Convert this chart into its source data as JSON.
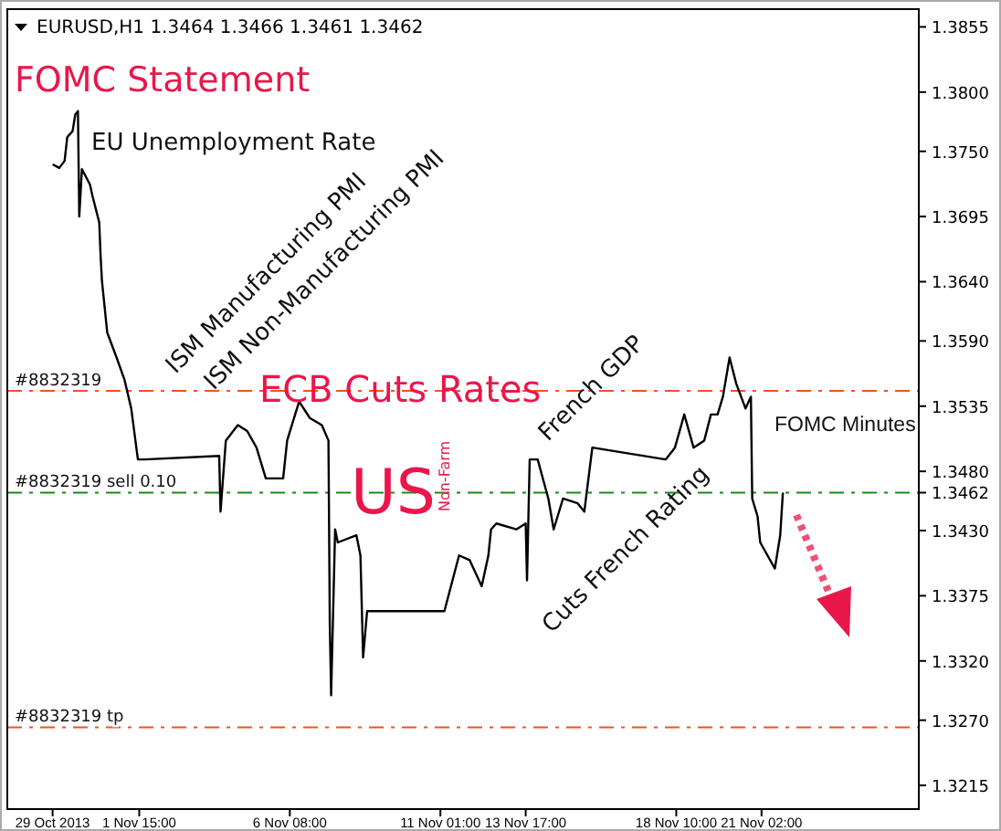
{
  "chart_data": {
    "type": "line",
    "title": "EURUSD,H1  1.3464 1.3466 1.3461 1.3462",
    "x": [
      "2013-10-29T22:00",
      "2013-10-30T03:00",
      "2013-10-30T07:00",
      "2013-10-30T09:00",
      "2013-10-30T13:00",
      "2013-10-30T15:00",
      "2013-10-30T17:00",
      "2013-10-30T18:00",
      "2013-10-30T20:00",
      "2013-10-31T02:00",
      "2013-10-31T04:00",
      "2013-10-31T09:00",
      "2013-10-31T10:00",
      "2013-10-31T11:00",
      "2013-10-31T15:00",
      "2013-10-31T22:00",
      "2013-11-01T04:00",
      "2013-11-01T09:00",
      "2013-11-01T14:00",
      "2013-11-01T19:00",
      "2013-11-04T03:00",
      "2013-11-04T04:00",
      "2013-11-04T08:00",
      "2013-11-04T17:00",
      "2013-11-05T00:00",
      "2013-11-05T07:00",
      "2013-11-05T14:00",
      "2013-11-05T21:00",
      "2013-11-06T03:00",
      "2013-11-06T06:00",
      "2013-11-06T15:00",
      "2013-11-06T23:00",
      "2013-11-07T08:00",
      "2013-11-07T13:00",
      "2013-11-07T14:00",
      "2013-11-07T15:00",
      "2013-11-07T18:00",
      "2013-11-07T20:00",
      "2013-11-08T10:00",
      "2013-11-08T13:00",
      "2013-11-08T15:00",
      "2013-11-08T18:00",
      "2013-11-11T04:00",
      "2013-11-11T15:00",
      "2013-11-11T23:00",
      "2013-11-12T08:00",
      "2013-11-12T13:00",
      "2013-11-12T15:00",
      "2013-11-12T19:00",
      "2013-11-13T10:00",
      "2013-11-13T17:00",
      "2013-11-13T18:00",
      "2013-11-13T20:00",
      "2013-11-14T02:00",
      "2013-11-14T10:00",
      "2013-11-14T14:00",
      "2013-11-14T21:00",
      "2013-11-15T08:00",
      "2013-11-15T13:00",
      "2013-11-15T19:00",
      "2013-11-18T02:00",
      "2013-11-18T09:00",
      "2013-11-18T16:00",
      "2013-11-18T23:00",
      "2013-11-19T07:00",
      "2013-11-19T12:00",
      "2013-11-19T17:00",
      "2013-11-19T21:00",
      "2013-11-20T02:00",
      "2013-11-20T07:00",
      "2013-11-20T14:00",
      "2013-11-20T18:00",
      "2013-11-20T19:00",
      "2013-11-20T23:00",
      "2013-11-21T01:00",
      "2013-11-21T12:00",
      "2013-11-21T16:00",
      "2013-11-21T18:00"
    ],
    "series": [
      {
        "color": "#000000",
        "values": [
          1.3739,
          1.3736,
          1.3742,
          1.3762,
          1.3767,
          1.3781,
          1.3784,
          1.3695,
          1.3735,
          1.3722,
          1.3712,
          1.369,
          1.3662,
          1.3641,
          1.3597,
          1.3576,
          1.3557,
          1.3533,
          1.349,
          1.349,
          1.3493,
          1.3446,
          1.3506,
          1.3519,
          1.3514,
          1.35,
          1.3474,
          1.3474,
          1.3474,
          1.3506,
          1.3539,
          1.3525,
          1.3519,
          1.3506,
          1.3351,
          1.3291,
          1.3431,
          1.342,
          1.3426,
          1.3409,
          1.3323,
          1.3362,
          1.3362,
          1.3409,
          1.3405,
          1.3383,
          1.3409,
          1.3431,
          1.3436,
          1.3431,
          1.3436,
          1.3388,
          1.349,
          1.349,
          1.3457,
          1.3431,
          1.3457,
          1.3453,
          1.3446,
          1.35,
          1.349,
          1.35,
          1.3528,
          1.35,
          1.3506,
          1.3528,
          1.3528,
          1.3543,
          1.3576,
          1.3554,
          1.3533,
          1.3543,
          1.3457,
          1.3442,
          1.342,
          1.3398,
          1.3426,
          1.3462
        ]
      }
    ],
    "xlim": [
      "2013-10-28T12:00",
      "2013-11-26T00:00"
    ],
    "xticks": [
      {
        "value": "2013-10-29T22:00",
        "label": "29 Oct 2013"
      },
      {
        "value": "2013-11-01T15:00",
        "label": "1 Nov 15:00"
      },
      {
        "value": "2013-11-06T08:00",
        "label": "6 Nov 08:00"
      },
      {
        "value": "2013-11-11T01:00",
        "label": "11 Nov 01:00"
      },
      {
        "value": "2013-11-13T17:00",
        "label": "13 Nov 17:00"
      },
      {
        "value": "2013-11-18T10:00",
        "label": "18 Nov 10:00"
      },
      {
        "value": "2013-11-21T02:00",
        "label": "21 Nov 02:00"
      }
    ],
    "ylim": [
      1.3195,
      1.387
    ],
    "yticks": [
      {
        "value": 1.3855,
        "label": "1.3855"
      },
      {
        "value": 1.38,
        "label": "1.3800"
      },
      {
        "value": 1.375,
        "label": "1.3750"
      },
      {
        "value": 1.3695,
        "label": "1.3695"
      },
      {
        "value": 1.364,
        "label": "1.3640"
      },
      {
        "value": 1.359,
        "label": "1.3590"
      },
      {
        "value": 1.3535,
        "label": "1.3535"
      },
      {
        "value": 1.348,
        "label": "1.3480"
      },
      {
        "value": 1.3462,
        "label": "1.3462"
      },
      {
        "value": 1.343,
        "label": "1.3430"
      },
      {
        "value": 1.3375,
        "label": "1.3375"
      },
      {
        "value": 1.332,
        "label": "1.3320"
      },
      {
        "value": 1.327,
        "label": "1.3270"
      },
      {
        "value": 1.3215,
        "label": "1.3215"
      }
    ],
    "ref_lines": [
      {
        "axis": "y",
        "value": 1.3548,
        "color": "#f4511e",
        "line_style": "dashed"
      },
      {
        "axis": "y",
        "value": 1.3462,
        "label": "#8832319 sell 0.10",
        "color": "#1a8a1a",
        "line_style": "dashed"
      },
      {
        "axis": "y",
        "value": 1.3264,
        "label": "#8832319 tp",
        "color": "#f4511e",
        "line_style": "dashed"
      }
    ],
    "annotations": [
      "FOMC Statement",
      "EU Unemployment Rate",
      "ISM Manufacturing PMI",
      "ISM Non-Manufacturing PMI",
      "ECB Cuts Rates",
      "US",
      "Non-Farm",
      "French GDP",
      "Cuts French Rating",
      "FOMC Minutes",
      "#8832319"
    ],
    "grid": false,
    "marker": "none",
    "line_style": "solid"
  }
}
